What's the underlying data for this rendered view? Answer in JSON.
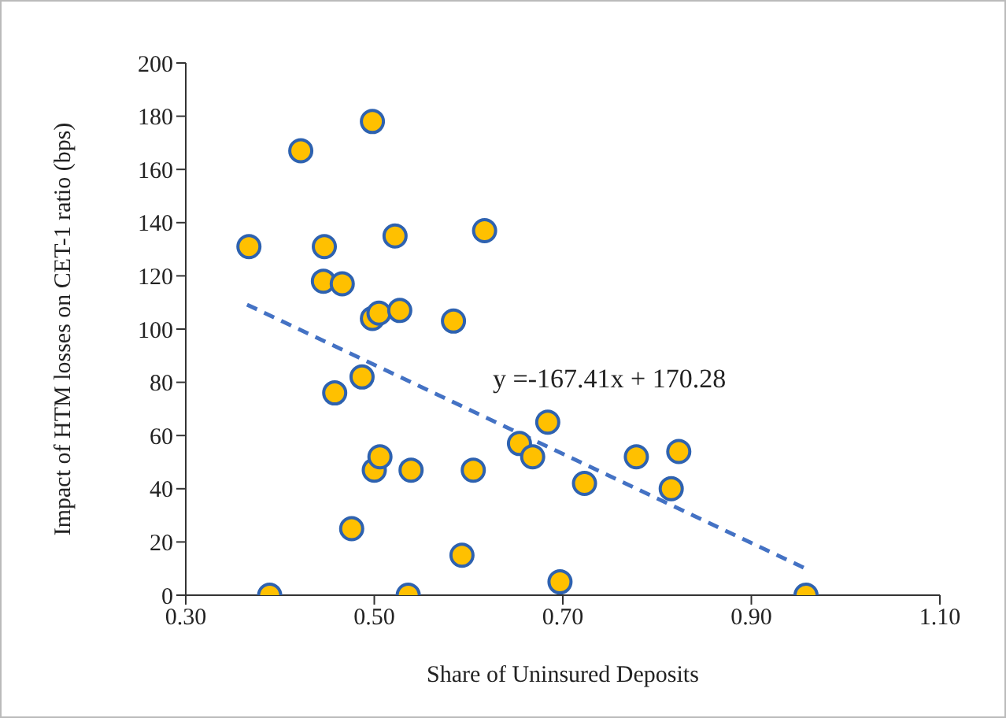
{
  "chart_data": {
    "type": "scatter",
    "xlabel": "Share of Uninsured Deposits",
    "ylabel": "Impact of HTM losses on CET-1 ratio (bps)",
    "xlim": [
      0.3,
      1.1
    ],
    "xticks": [
      {
        "value": 0.3,
        "label": "0.30"
      },
      {
        "value": 0.5,
        "label": "0.50"
      },
      {
        "value": 0.7,
        "label": "0.70"
      },
      {
        "value": 0.9,
        "label": "0.90"
      },
      {
        "value": 1.1,
        "label": "1.10"
      }
    ],
    "ylim": [
      0,
      200
    ],
    "yticks": [
      0,
      20,
      40,
      60,
      80,
      100,
      120,
      140,
      160,
      180,
      200
    ],
    "grid": false,
    "legend": false,
    "series": [
      {
        "color": "#ffc000",
        "marker": "circle",
        "x": [
          0.367,
          0.422,
          0.498,
          0.447,
          0.522,
          0.617,
          0.446,
          0.466,
          0.498,
          0.505,
          0.527,
          0.584,
          0.458,
          0.487,
          0.5,
          0.506,
          0.539,
          0.605,
          0.476,
          0.593,
          0.389,
          0.536,
          0.654,
          0.668,
          0.684,
          0.723,
          0.778,
          0.823,
          0.815,
          0.697,
          0.958
        ],
        "values": [
          131,
          167,
          178,
          131,
          135,
          137,
          118,
          117,
          104,
          106,
          107,
          103,
          76,
          82,
          47,
          52,
          47,
          47,
          25,
          15,
          0,
          0,
          57,
          52,
          65,
          42,
          52,
          54,
          40,
          5,
          0
        ]
      },
      {
        "type": "line",
        "color": "#4472c4",
        "marker": "none",
        "line_style": "dashed",
        "x": [
          0.365,
          0.96
        ],
        "values": [
          109.2,
          9.6
        ]
      }
    ],
    "annotations": [
      "y =-167.41x + 170.28"
    ]
  }
}
